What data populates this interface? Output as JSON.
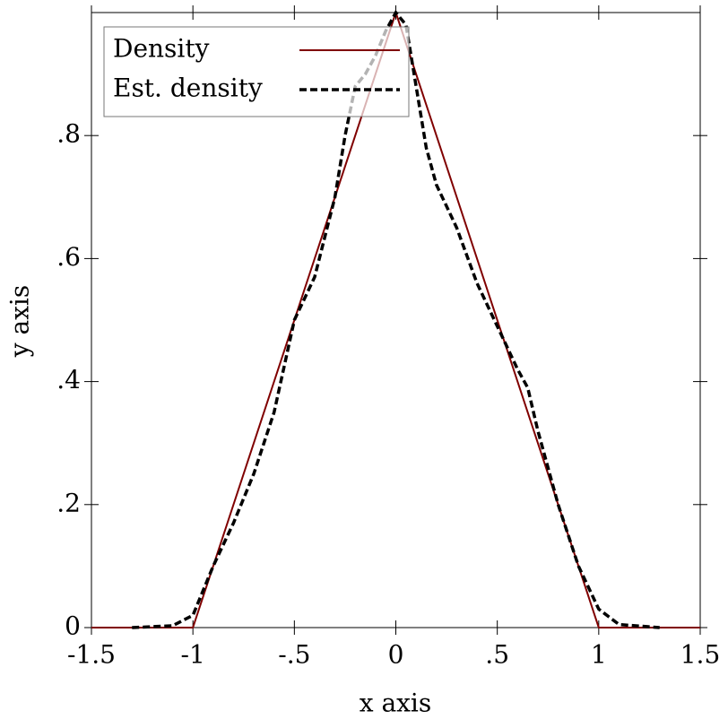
{
  "chart_data": {
    "type": "line",
    "xlabel": "x axis",
    "ylabel": "y axis",
    "xlim": [
      -1.5,
      1.5
    ],
    "ylim": [
      0,
      1
    ],
    "xticks": [
      -1.5,
      -1,
      {
        "value": -0.5,
        "label": "-.5"
      },
      0,
      {
        "value": 0.5,
        "label": ".5"
      },
      1,
      1.5
    ],
    "yticks": [
      0,
      {
        "value": 0.2,
        "label": ".2"
      },
      {
        "value": 0.4,
        "label": ".4"
      },
      {
        "value": 0.6,
        "label": ".6"
      },
      {
        "value": 0.8,
        "label": ".8"
      }
    ],
    "legend": "top-left",
    "series": [
      {
        "name": "Density",
        "color": "#800000",
        "dash": false,
        "x": [
          -1.5,
          -1,
          0,
          1,
          1.5
        ],
        "values": [
          0,
          0,
          1,
          0,
          0
        ]
      },
      {
        "name": "Est. density",
        "color": "#000000",
        "dash": true,
        "x": [
          -1.3,
          -1.1,
          -1.0,
          -0.9,
          -0.8,
          -0.7,
          -0.6,
          -0.5,
          -0.4,
          -0.3,
          -0.25,
          -0.2,
          -0.15,
          -0.1,
          -0.05,
          0,
          0.05,
          0.1,
          0.15,
          0.2,
          0.3,
          0.4,
          0.5,
          0.6,
          0.65,
          0.7,
          0.8,
          0.9,
          1.0,
          1.1,
          1.3
        ],
        "values": [
          0,
          0.003,
          0.02,
          0.1,
          0.17,
          0.25,
          0.35,
          0.5,
          0.57,
          0.7,
          0.8,
          0.88,
          0.9,
          0.93,
          0.97,
          1.0,
          0.98,
          0.88,
          0.78,
          0.72,
          0.65,
          0.56,
          0.49,
          0.42,
          0.39,
          0.32,
          0.2,
          0.1,
          0.03,
          0.005,
          0
        ]
      }
    ]
  }
}
